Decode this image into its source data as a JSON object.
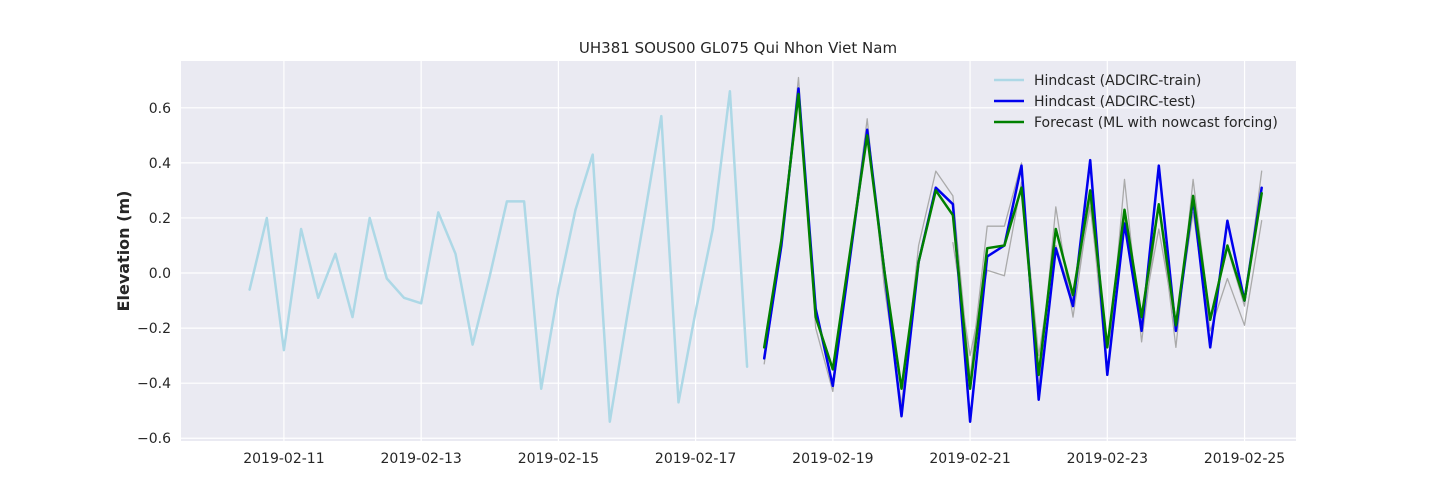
{
  "chart_data": {
    "type": "line",
    "title": "UH381 SOUS00 GL075 Qui Nhon Viet Nam",
    "xlabel": "",
    "ylabel": "Elevation (m)",
    "xlim": [
      "2019-02-09 12:00",
      "2019-02-25 18:00"
    ],
    "ylim": [
      -0.61,
      0.77
    ],
    "grid": true,
    "legend_position": "top-right",
    "x_ticks": [
      "2019-02-11",
      "2019-02-13",
      "2019-02-15",
      "2019-02-17",
      "2019-02-19",
      "2019-02-21",
      "2019-02-23",
      "2019-02-25"
    ],
    "y_ticks": [
      -0.6,
      -0.4,
      -0.2,
      0.0,
      0.2,
      0.4,
      0.6
    ],
    "y_tick_labels": [
      "−0.6",
      "−0.4",
      "−0.2",
      "0.0",
      "0.2",
      "0.4",
      "0.6"
    ],
    "series": [
      {
        "name": "",
        "role": "observed",
        "color": "#aaaaaa",
        "x": [
          "2019-02-18 00:00",
          "2019-02-18 06:00",
          "2019-02-18 12:00",
          "2019-02-18 18:00",
          "2019-02-19 00:00",
          "2019-02-19 12:00",
          "2019-02-19 18:00",
          "2019-02-20 00:00",
          "2019-02-20 06:00",
          "2019-02-20 12:00",
          "2019-02-20 18:00",
          "2019-02-21 00:00",
          "2019-02-21 06:00",
          "2019-02-21 12:00",
          "2019-02-21 18:00",
          "2019-02-22 00:00",
          "2019-02-22 06:00",
          "2019-02-22 12:00",
          "2019-02-22 18:00",
          "2019-02-23 00:00",
          "2019-02-23 06:00",
          "2019-02-23 12:00",
          "2019-02-23 18:00",
          "2019-02-24 00:00",
          "2019-02-24 06:00",
          "2019-02-24 12:00",
          "2019-02-24 18:00",
          "2019-02-25 00:00",
          "2019-02-25 06:00"
        ],
        "y": [
          -0.33,
          0.1,
          0.71,
          -0.2,
          -0.43,
          0.56,
          -0.05,
          -0.48,
          0.1,
          0.37,
          0.28,
          -0.38,
          0.17,
          0.17,
          0.4,
          -0.42,
          0.24,
          -0.16,
          0.27,
          -0.37,
          0.34,
          -0.25,
          0.25,
          -0.27,
          0.34,
          -0.17,
          0.09,
          -0.12,
          0.37
        ]
      },
      {
        "name": "",
        "role": "observed-secondary",
        "color": "#aaaaaa",
        "x": [
          "2019-02-20 18:00",
          "2019-02-21 00:00",
          "2019-02-21 06:00",
          "2019-02-21 12:00",
          "2019-02-21 18:00",
          "2019-02-22 00:00",
          "2019-02-22 06:00",
          "2019-02-22 12:00",
          "2019-02-22 18:00",
          "2019-02-23 00:00",
          "2019-02-23 06:00",
          "2019-02-23 12:00",
          "2019-02-23 18:00",
          "2019-02-24 00:00",
          "2019-02-24 06:00",
          "2019-02-24 12:00",
          "2019-02-24 18:00",
          "2019-02-25 00:00",
          "2019-02-25 06:00"
        ],
        "y": [
          0.11,
          -0.3,
          0.01,
          -0.01,
          0.33,
          -0.3,
          0.1,
          -0.1,
          0.24,
          -0.27,
          0.2,
          -0.18,
          0.16,
          -0.2,
          0.22,
          -0.21,
          -0.02,
          -0.19,
          0.19
        ]
      },
      {
        "name": "Hindcast (ADCIRC-train)",
        "color": "#add8e6",
        "x": [
          "2019-02-10 12:00",
          "2019-02-10 18:00",
          "2019-02-11 00:00",
          "2019-02-11 06:00",
          "2019-02-11 12:00",
          "2019-02-11 18:00",
          "2019-02-12 00:00",
          "2019-02-12 06:00",
          "2019-02-12 12:00",
          "2019-02-12 18:00",
          "2019-02-13 00:00",
          "2019-02-13 06:00",
          "2019-02-13 12:00",
          "2019-02-13 18:00",
          "2019-02-14 00:00",
          "2019-02-14 06:00",
          "2019-02-14 12:00",
          "2019-02-14 18:00",
          "2019-02-15 00:00",
          "2019-02-15 06:00",
          "2019-02-15 12:00",
          "2019-02-15 18:00",
          "2019-02-16 00:00",
          "2019-02-16 06:00",
          "2019-02-16 12:00",
          "2019-02-16 18:00",
          "2019-02-17 00:00",
          "2019-02-17 06:00",
          "2019-02-17 12:00",
          "2019-02-17 18:00"
        ],
        "y": [
          -0.06,
          0.2,
          -0.28,
          0.16,
          -0.09,
          0.07,
          -0.16,
          0.2,
          -0.02,
          -0.09,
          -0.11,
          0.22,
          0.07,
          -0.26,
          -0.01,
          0.26,
          0.26,
          -0.42,
          -0.06,
          0.23,
          0.43,
          -0.54,
          -0.16,
          0.2,
          0.57,
          -0.47,
          -0.14,
          0.16,
          0.66,
          -0.34
        ]
      },
      {
        "name": "Hindcast (ADCIRC-test)",
        "color": "#0000ee",
        "x": [
          "2019-02-18 00:00",
          "2019-02-18 06:00",
          "2019-02-18 12:00",
          "2019-02-18 18:00",
          "2019-02-19 00:00",
          "2019-02-19 12:00",
          "2019-02-19 18:00",
          "2019-02-20 00:00",
          "2019-02-20 06:00",
          "2019-02-20 12:00",
          "2019-02-20 18:00",
          "2019-02-21 00:00",
          "2019-02-21 06:00",
          "2019-02-21 12:00",
          "2019-02-21 18:00",
          "2019-02-22 00:00",
          "2019-02-22 06:00",
          "2019-02-22 12:00",
          "2019-02-22 18:00",
          "2019-02-23 00:00",
          "2019-02-23 06:00",
          "2019-02-23 12:00",
          "2019-02-23 18:00",
          "2019-02-24 00:00",
          "2019-02-24 06:00",
          "2019-02-24 12:00",
          "2019-02-24 18:00",
          "2019-02-25 00:00",
          "2019-02-25 06:00"
        ],
        "y": [
          -0.31,
          0.1,
          0.67,
          -0.13,
          -0.41,
          0.52,
          0.01,
          -0.52,
          0.04,
          0.31,
          0.25,
          -0.54,
          0.06,
          0.1,
          0.39,
          -0.46,
          0.09,
          -0.12,
          0.41,
          -0.37,
          0.18,
          -0.21,
          0.39,
          -0.21,
          0.27,
          -0.27,
          0.19,
          -0.1,
          0.31
        ]
      },
      {
        "name": "Forecast (ML with nowcast forcing)",
        "color": "#008000",
        "x": [
          "2019-02-18 00:00",
          "2019-02-18 06:00",
          "2019-02-18 12:00",
          "2019-02-18 18:00",
          "2019-02-19 00:00",
          "2019-02-19 12:00",
          "2019-02-19 18:00",
          "2019-02-20 00:00",
          "2019-02-20 06:00",
          "2019-02-20 12:00",
          "2019-02-20 18:00",
          "2019-02-21 00:00",
          "2019-02-21 06:00",
          "2019-02-21 12:00",
          "2019-02-21 18:00",
          "2019-02-22 00:00",
          "2019-02-22 06:00",
          "2019-02-22 12:00",
          "2019-02-22 18:00",
          "2019-02-23 00:00",
          "2019-02-23 06:00",
          "2019-02-23 12:00",
          "2019-02-23 18:00",
          "2019-02-24 00:00",
          "2019-02-24 06:00",
          "2019-02-24 12:00",
          "2019-02-24 18:00",
          "2019-02-25 00:00",
          "2019-02-25 06:00"
        ],
        "y": [
          -0.27,
          0.12,
          0.65,
          -0.16,
          -0.35,
          0.5,
          0.01,
          -0.42,
          0.04,
          0.3,
          0.21,
          -0.42,
          0.09,
          0.1,
          0.31,
          -0.37,
          0.16,
          -0.08,
          0.3,
          -0.27,
          0.23,
          -0.16,
          0.25,
          -0.19,
          0.28,
          -0.17,
          0.1,
          -0.1,
          0.29
        ]
      }
    ]
  }
}
